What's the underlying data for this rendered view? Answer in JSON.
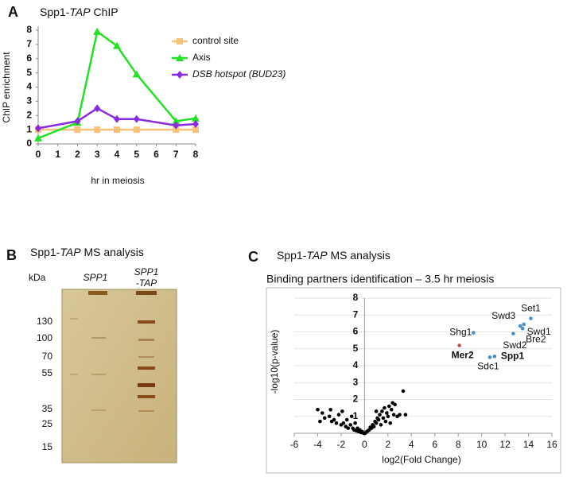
{
  "panels": [
    "A",
    "B",
    "C"
  ],
  "chart_data": [
    {
      "type": "line",
      "title": [
        "Spp1-",
        "TAP",
        " ChIP"
      ],
      "x_label": "hr in meiosis",
      "y_label": "ChIP enrichment",
      "xlim": [
        0,
        8
      ],
      "xticks": [
        0,
        1,
        2,
        3,
        4,
        5,
        6,
        7,
        8
      ],
      "ylim": [
        0,
        8
      ],
      "yticks": [
        0,
        1,
        2,
        3,
        4,
        5,
        6,
        7,
        8
      ],
      "series": [
        {
          "name": "control site",
          "color": "#f8c27c",
          "marker": "square",
          "x": [
            0,
            2,
            3,
            4,
            5,
            7,
            8
          ],
          "values": [
            1,
            1,
            1,
            1,
            1,
            1,
            1
          ]
        },
        {
          "name": "Axis",
          "color": "#22e022",
          "marker": "triangle",
          "x": [
            0,
            2,
            3,
            4,
            5,
            7,
            8
          ],
          "values": [
            0.4,
            1.5,
            7.9,
            6.9,
            4.9,
            1.6,
            1.8
          ]
        },
        {
          "name": "DSB hotspot (BUD23)",
          "color": "#8a2be2",
          "marker": "diamond",
          "italic": true,
          "x": [
            0,
            2,
            3,
            4,
            5,
            7,
            8
          ],
          "values": [
            1.1,
            1.6,
            2.5,
            1.75,
            1.75,
            1.3,
            1.4
          ]
        }
      ]
    },
    {
      "type": "scatter",
      "title": [
        "Spp1-",
        "TAP",
        " MS analysis"
      ],
      "subtitle": "Binding partners identification – 3.5 hr meiosis",
      "x_label": "log2(Fold Change)",
      "y_label": "-log10(p-value)",
      "xlim": [
        -6,
        16
      ],
      "xticks": [
        -6,
        -4,
        -2,
        0,
        2,
        4,
        6,
        8,
        10,
        12,
        14,
        16
      ],
      "ylim": [
        0,
        8
      ],
      "yticks": [
        1,
        2,
        3,
        4,
        5,
        6,
        7,
        8
      ],
      "grid": true,
      "series": [
        {
          "color": "#000000",
          "x": [
            -4,
            -3.6,
            -3.4,
            -3,
            -2.8,
            -2.6,
            -2.4,
            -2.2,
            -2,
            -1.9,
            -1.8,
            -1.6,
            -1.5,
            -1.4,
            -1.2,
            -1.1,
            -1,
            -0.9,
            -0.8,
            -0.7,
            -0.6,
            -0.5,
            -0.4,
            -0.3,
            -0.2,
            -0.1,
            0,
            0.1,
            0.2,
            0.3,
            0.4,
            0.5,
            0.6,
            0.7,
            0.8,
            0.9,
            1,
            1.1,
            1.2,
            1.3,
            1.4,
            1.5,
            1.6,
            1.7,
            1.8,
            1.9,
            2,
            2.1,
            2.2,
            2.3,
            2.4,
            2.5,
            2.6,
            2.8,
            3,
            3.3,
            3.5,
            -2.9,
            -3.8,
            1
          ],
          "values": [
            1.4,
            1.2,
            0.9,
            1,
            0.7,
            0.8,
            0.6,
            1.1,
            0.5,
            1.3,
            0.6,
            0.4,
            0.8,
            0.3,
            0.5,
            1,
            0.3,
            0.2,
            0.6,
            0.15,
            0.3,
            0.1,
            0.2,
            0.05,
            0.1,
            0.02,
            0,
            0.03,
            0.1,
            0.15,
            0.2,
            0.35,
            0.3,
            0.5,
            0.4,
            0.7,
            0.6,
            0.9,
            0.8,
            1.1,
            0.5,
            1.3,
            0.9,
            1.5,
            0.7,
            1.2,
            1,
            1.6,
            0.6,
            1.4,
            1.8,
            1.1,
            1.7,
            1,
            1.1,
            2.5,
            1.1,
            1.4,
            0.7,
            1.3
          ]
        },
        {
          "color": "#4a90c8",
          "x": [
            12.7,
            13.3,
            13.6,
            14.2,
            13.5,
            9.3,
            10.7,
            11.1
          ],
          "values": [
            5.9,
            6.35,
            6.45,
            6.8,
            6.2,
            5.95,
            4.5,
            4.55
          ]
        },
        {
          "color": "#c0504d",
          "x": [
            8.1
          ],
          "values": [
            5.2
          ]
        }
      ],
      "annotations": [
        {
          "text": "Set1",
          "x": 14.2,
          "y": 6.8
        },
        {
          "text": "Swd3",
          "x": 13.3,
          "y": 6.35
        },
        {
          "text": "Swd1",
          "x": 13.6,
          "y": 6.45
        },
        {
          "text": "Bre2",
          "x": 13.5,
          "y": 6.2
        },
        {
          "text": "Swd2",
          "x": 12.7,
          "y": 5.9
        },
        {
          "text": "Shg1",
          "x": 9.3,
          "y": 5.95
        },
        {
          "text": "Mer2",
          "x": 8.1,
          "y": 5.2,
          "bold": true,
          "color": "#c0504d"
        },
        {
          "text": "Sdc1",
          "x": 10.7,
          "y": 4.5
        },
        {
          "text": "Spp1",
          "x": 11.1,
          "y": 4.55,
          "bold": true
        }
      ]
    }
  ],
  "gel": {
    "title": [
      "Spp1-",
      "TAP",
      " MS analysis"
    ],
    "unit": "kDa",
    "lanes": [
      [
        "SPP1"
      ],
      [
        "SPP1",
        "-TAP"
      ]
    ],
    "markers": [
      130,
      100,
      70,
      55,
      35,
      25,
      15
    ]
  }
}
